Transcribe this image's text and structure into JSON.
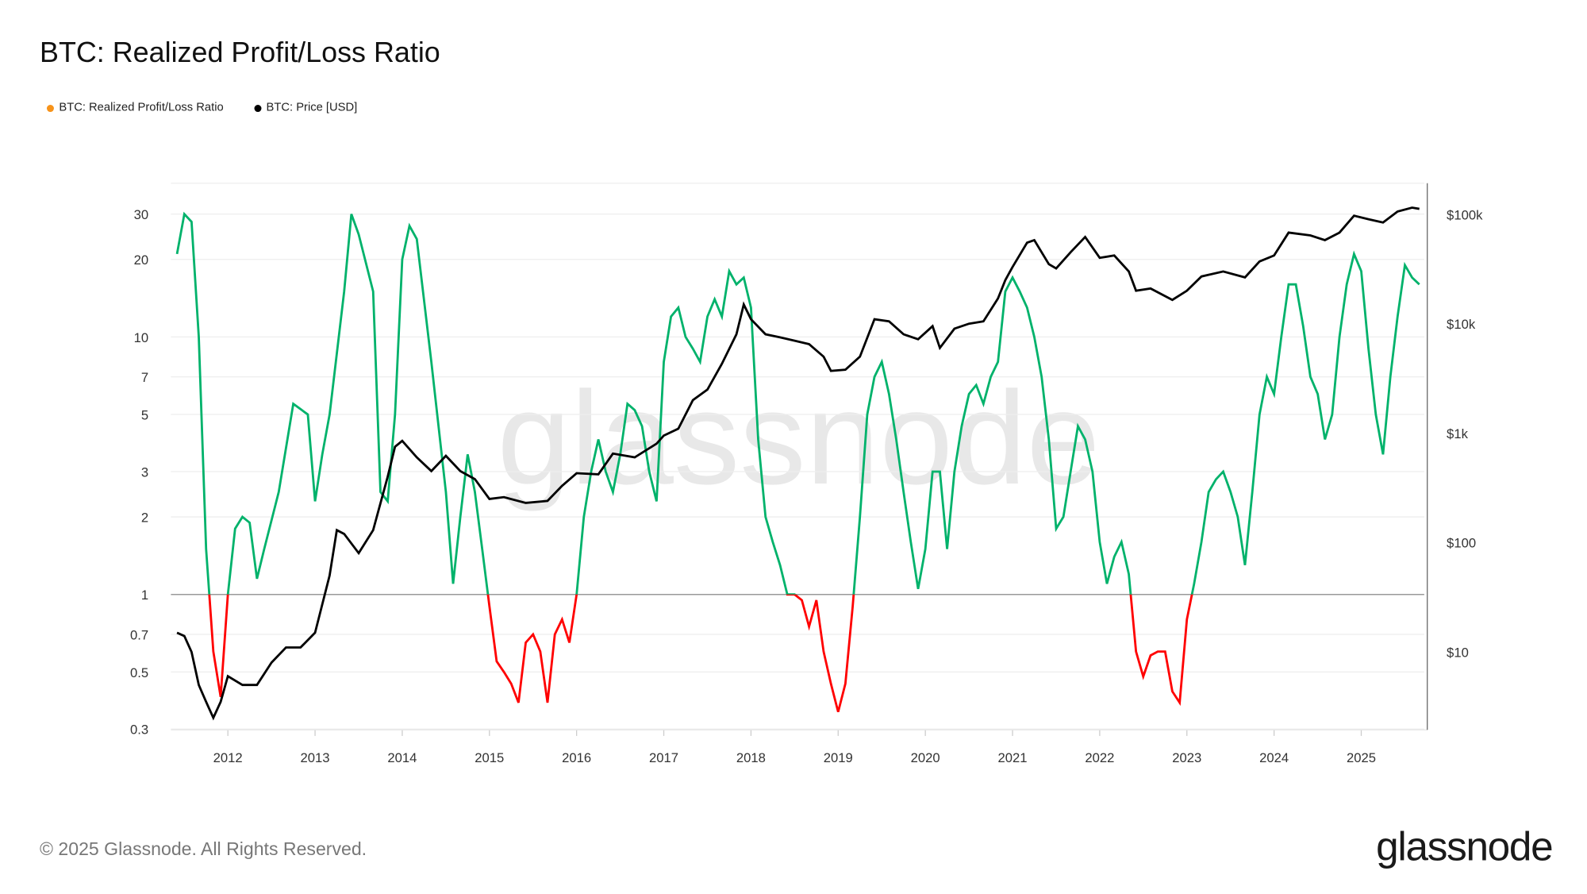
{
  "title": "BTC: Realized Profit/Loss Ratio",
  "legend": [
    {
      "label": "BTC: Realized Profit/Loss Ratio",
      "color": "#f7931a"
    },
    {
      "label": "BTC: Price [USD]",
      "color": "#000000"
    }
  ],
  "footer": "© 2025 Glassnode. All Rights Reserved.",
  "logo": "glassnode",
  "watermark": "glassnode",
  "colors": {
    "ratio_above_1": "#00b26b",
    "ratio_below_1": "#ff0000",
    "price": "#000000",
    "reference_line": "#999999"
  },
  "chart_data": {
    "type": "line",
    "title": "BTC: Realized Profit/Loss Ratio",
    "x_ticks": [
      "2012",
      "2013",
      "2014",
      "2015",
      "2016",
      "2017",
      "2018",
      "2019",
      "2020",
      "2021",
      "2022",
      "2023",
      "2024",
      "2025"
    ],
    "y_left": {
      "scale": "log",
      "ticks": [
        {
          "v": 30,
          "label": "30"
        },
        {
          "v": 20,
          "label": "20"
        },
        {
          "v": 10,
          "label": "10"
        },
        {
          "v": 7,
          "label": "7"
        },
        {
          "v": 5,
          "label": "5"
        },
        {
          "v": 3,
          "label": "3"
        },
        {
          "v": 2,
          "label": "2"
        },
        {
          "v": 1,
          "label": "1"
        },
        {
          "v": 0.7,
          "label": "0.7"
        },
        {
          "v": 0.5,
          "label": "0.5"
        },
        {
          "v": 0.3,
          "label": "0.3"
        }
      ],
      "range": [
        0.3,
        40
      ]
    },
    "y_right": {
      "scale": "log",
      "ticks": [
        {
          "v": 100000,
          "label": "$100k"
        },
        {
          "v": 10000,
          "label": "$10k"
        },
        {
          "v": 1000,
          "label": "$1k"
        },
        {
          "v": 100,
          "label": "$100"
        },
        {
          "v": 10,
          "label": "$10"
        }
      ]
    },
    "reference_line": 1,
    "grid": true,
    "legend_position": "top-left",
    "series": [
      {
        "name": "BTC: Realized Profit/Loss Ratio",
        "axis": "left",
        "note_colors": "green above 1, red below 1",
        "points": [
          [
            "2011-06",
            21
          ],
          [
            "2011-07",
            30
          ],
          [
            "2011-08",
            28
          ],
          [
            "2011-09",
            10
          ],
          [
            "2011-10",
            1.5
          ],
          [
            "2011-11",
            0.6
          ],
          [
            "2011-12",
            0.4
          ],
          [
            "2012-01",
            1
          ],
          [
            "2012-02",
            1.8
          ],
          [
            "2012-03",
            2.0
          ],
          [
            "2012-04",
            1.9
          ],
          [
            "2012-05",
            1.15
          ],
          [
            "2012-06",
            1.5
          ],
          [
            "2012-08",
            2.5
          ],
          [
            "2012-10",
            5.5
          ],
          [
            "2012-12",
            5
          ],
          [
            "2013-01",
            2.3
          ],
          [
            "2013-02",
            3.5
          ],
          [
            "2013-03",
            5
          ],
          [
            "2013-05",
            15
          ],
          [
            "2013-06",
            30
          ],
          [
            "2013-07",
            25
          ],
          [
            "2013-09",
            15
          ],
          [
            "2013-10",
            2.5
          ],
          [
            "2013-11",
            2.3
          ],
          [
            "2013-12",
            5
          ],
          [
            "2014-01",
            20
          ],
          [
            "2014-02",
            27
          ],
          [
            "2014-03",
            24
          ],
          [
            "2014-05",
            8
          ],
          [
            "2014-07",
            2.5
          ],
          [
            "2014-08",
            1.1
          ],
          [
            "2014-09",
            2
          ],
          [
            "2014-10",
            3.5
          ],
          [
            "2014-11",
            2.5
          ],
          [
            "2014-12",
            1.5
          ],
          [
            "2015-01",
            0.9
          ],
          [
            "2015-02",
            0.55
          ],
          [
            "2015-03",
            0.5
          ],
          [
            "2015-04",
            0.45
          ],
          [
            "2015-05",
            0.38
          ],
          [
            "2015-06",
            0.65
          ],
          [
            "2015-07",
            0.7
          ],
          [
            "2015-08",
            0.6
          ],
          [
            "2015-09",
            0.38
          ],
          [
            "2015-10",
            0.7
          ],
          [
            "2015-11",
            0.8
          ],
          [
            "2015-12",
            0.65
          ],
          [
            "2016-01",
            1
          ],
          [
            "2016-02",
            2
          ],
          [
            "2016-03",
            3
          ],
          [
            "2016-04",
            4
          ],
          [
            "2016-05",
            3
          ],
          [
            "2016-06",
            2.5
          ],
          [
            "2016-07",
            3.5
          ],
          [
            "2016-08",
            5.5
          ],
          [
            "2016-09",
            5.2
          ],
          [
            "2016-10",
            4.5
          ],
          [
            "2016-11",
            3
          ],
          [
            "2016-12",
            2.3
          ],
          [
            "2017-01",
            8
          ],
          [
            "2017-02",
            12
          ],
          [
            "2017-03",
            13
          ],
          [
            "2017-04",
            10
          ],
          [
            "2017-05",
            9
          ],
          [
            "2017-06",
            8
          ],
          [
            "2017-07",
            12
          ],
          [
            "2017-08",
            14
          ],
          [
            "2017-09",
            12
          ],
          [
            "2017-10",
            18
          ],
          [
            "2017-11",
            16
          ],
          [
            "2017-12",
            17
          ],
          [
            "2018-01",
            13
          ],
          [
            "2018-02",
            4
          ],
          [
            "2018-03",
            2
          ],
          [
            "2018-04",
            1.6
          ],
          [
            "2018-05",
            1.3
          ],
          [
            "2018-06",
            1.0
          ],
          [
            "2018-07",
            1.0
          ],
          [
            "2018-08",
            0.95
          ],
          [
            "2018-09",
            0.75
          ],
          [
            "2018-10",
            0.95
          ],
          [
            "2018-11",
            0.6
          ],
          [
            "2018-12",
            0.45
          ],
          [
            "2019-01",
            0.35
          ],
          [
            "2019-02",
            0.45
          ],
          [
            "2019-03",
            0.9
          ],
          [
            "2019-04",
            2
          ],
          [
            "2019-05",
            5
          ],
          [
            "2019-06",
            7
          ],
          [
            "2019-07",
            8
          ],
          [
            "2019-08",
            6
          ],
          [
            "2019-09",
            4
          ],
          [
            "2019-10",
            2.5
          ],
          [
            "2019-11",
            1.6
          ],
          [
            "2019-12",
            1.05
          ],
          [
            "2020-01",
            1.5
          ],
          [
            "2020-02",
            3
          ],
          [
            "2020-03",
            3
          ],
          [
            "2020-04",
            1.5
          ],
          [
            "2020-05",
            3
          ],
          [
            "2020-06",
            4.5
          ],
          [
            "2020-07",
            6
          ],
          [
            "2020-08",
            6.5
          ],
          [
            "2020-09",
            5.5
          ],
          [
            "2020-10",
            7
          ],
          [
            "2020-11",
            8
          ],
          [
            "2020-12",
            15
          ],
          [
            "2021-01",
            17
          ],
          [
            "2021-02",
            15
          ],
          [
            "2021-03",
            13
          ],
          [
            "2021-04",
            10
          ],
          [
            "2021-05",
            7
          ],
          [
            "2021-06",
            4
          ],
          [
            "2021-07",
            1.8
          ],
          [
            "2021-08",
            2
          ],
          [
            "2021-09",
            3
          ],
          [
            "2021-10",
            4.5
          ],
          [
            "2021-11",
            4
          ],
          [
            "2021-12",
            3
          ],
          [
            "2022-01",
            1.6
          ],
          [
            "2022-02",
            1.1
          ],
          [
            "2022-03",
            1.4
          ],
          [
            "2022-04",
            1.6
          ],
          [
            "2022-05",
            1.2
          ],
          [
            "2022-06",
            0.6
          ],
          [
            "2022-07",
            0.48
          ],
          [
            "2022-08",
            0.58
          ],
          [
            "2022-09",
            0.6
          ],
          [
            "2022-10",
            0.6
          ],
          [
            "2022-11",
            0.42
          ],
          [
            "2022-12",
            0.38
          ],
          [
            "2023-01",
            0.8
          ],
          [
            "2023-02",
            1.1
          ],
          [
            "2023-03",
            1.6
          ],
          [
            "2023-04",
            2.5
          ],
          [
            "2023-05",
            2.8
          ],
          [
            "2023-06",
            3
          ],
          [
            "2023-07",
            2.5
          ],
          [
            "2023-08",
            2
          ],
          [
            "2023-09",
            1.3
          ],
          [
            "2023-10",
            2.5
          ],
          [
            "2023-11",
            5
          ],
          [
            "2023-12",
            7
          ],
          [
            "2024-01",
            6
          ],
          [
            "2024-02",
            10
          ],
          [
            "2024-03",
            16
          ],
          [
            "2024-04",
            16
          ],
          [
            "2024-05",
            11
          ],
          [
            "2024-06",
            7
          ],
          [
            "2024-07",
            6
          ],
          [
            "2024-08",
            4
          ],
          [
            "2024-09",
            5
          ],
          [
            "2024-10",
            10
          ],
          [
            "2024-11",
            16
          ],
          [
            "2024-12",
            21
          ],
          [
            "2025-01",
            18
          ],
          [
            "2025-02",
            9
          ],
          [
            "2025-03",
            5
          ],
          [
            "2025-04",
            3.5
          ],
          [
            "2025-05",
            7
          ],
          [
            "2025-06",
            12
          ],
          [
            "2025-07",
            19
          ],
          [
            "2025-08",
            17
          ],
          [
            "2025-09",
            16
          ]
        ]
      },
      {
        "name": "BTC: Price [USD]",
        "axis": "right",
        "points": [
          [
            "2011-06",
            15
          ],
          [
            "2011-07",
            14
          ],
          [
            "2011-08",
            10
          ],
          [
            "2011-09",
            5
          ],
          [
            "2011-10",
            3.5
          ],
          [
            "2011-11",
            2.5
          ],
          [
            "2011-12",
            3.5
          ],
          [
            "2012-01",
            6
          ],
          [
            "2012-03",
            5
          ],
          [
            "2012-05",
            5
          ],
          [
            "2012-07",
            8
          ],
          [
            "2012-09",
            11
          ],
          [
            "2012-11",
            11
          ],
          [
            "2013-01",
            15
          ],
          [
            "2013-03",
            50
          ],
          [
            "2013-04",
            130
          ],
          [
            "2013-05",
            120
          ],
          [
            "2013-07",
            80
          ],
          [
            "2013-09",
            130
          ],
          [
            "2013-11",
            400
          ],
          [
            "2013-12",
            750
          ],
          [
            "2014-01",
            850
          ],
          [
            "2014-03",
            600
          ],
          [
            "2014-05",
            450
          ],
          [
            "2014-07",
            620
          ],
          [
            "2014-09",
            450
          ],
          [
            "2014-11",
            380
          ],
          [
            "2015-01",
            250
          ],
          [
            "2015-03",
            260
          ],
          [
            "2015-06",
            230
          ],
          [
            "2015-09",
            240
          ],
          [
            "2015-11",
            330
          ],
          [
            "2016-01",
            430
          ],
          [
            "2016-04",
            420
          ],
          [
            "2016-06",
            650
          ],
          [
            "2016-09",
            600
          ],
          [
            "2016-12",
            800
          ],
          [
            "2017-01",
            950
          ],
          [
            "2017-03",
            1100
          ],
          [
            "2017-05",
            2000
          ],
          [
            "2017-07",
            2500
          ],
          [
            "2017-09",
            4300
          ],
          [
            "2017-11",
            8000
          ],
          [
            "2017-12",
            15000
          ],
          [
            "2018-01",
            11000
          ],
          [
            "2018-03",
            8000
          ],
          [
            "2018-05",
            7500
          ],
          [
            "2018-07",
            7000
          ],
          [
            "2018-09",
            6500
          ],
          [
            "2018-11",
            5000
          ],
          [
            "2018-12",
            3700
          ],
          [
            "2019-02",
            3800
          ],
          [
            "2019-04",
            5000
          ],
          [
            "2019-06",
            11000
          ],
          [
            "2019-08",
            10500
          ],
          [
            "2019-10",
            8000
          ],
          [
            "2019-12",
            7200
          ],
          [
            "2020-02",
            9500
          ],
          [
            "2020-03",
            6000
          ],
          [
            "2020-05",
            9000
          ],
          [
            "2020-07",
            10000
          ],
          [
            "2020-09",
            10500
          ],
          [
            "2020-11",
            17000
          ],
          [
            "2020-12",
            25000
          ],
          [
            "2021-01",
            33000
          ],
          [
            "2021-03",
            55000
          ],
          [
            "2021-04",
            58000
          ],
          [
            "2021-06",
            35000
          ],
          [
            "2021-07",
            32000
          ],
          [
            "2021-09",
            45000
          ],
          [
            "2021-11",
            62000
          ],
          [
            "2022-01",
            40000
          ],
          [
            "2022-03",
            42000
          ],
          [
            "2022-05",
            30000
          ],
          [
            "2022-06",
            20000
          ],
          [
            "2022-08",
            21000
          ],
          [
            "2022-11",
            16500
          ],
          [
            "2023-01",
            20000
          ],
          [
            "2023-03",
            27000
          ],
          [
            "2023-06",
            30000
          ],
          [
            "2023-09",
            26500
          ],
          [
            "2023-11",
            37000
          ],
          [
            "2024-01",
            42000
          ],
          [
            "2024-03",
            68000
          ],
          [
            "2024-06",
            64000
          ],
          [
            "2024-08",
            58000
          ],
          [
            "2024-10",
            68000
          ],
          [
            "2024-12",
            97000
          ],
          [
            "2025-02",
            90000
          ],
          [
            "2025-04",
            84000
          ],
          [
            "2025-06",
            106000
          ],
          [
            "2025-08",
            115000
          ],
          [
            "2025-09",
            112000
          ]
        ]
      }
    ]
  }
}
